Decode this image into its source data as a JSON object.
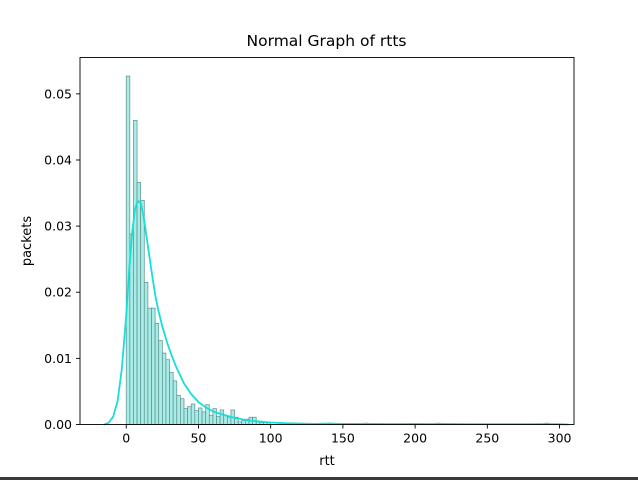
{
  "chart_data": {
    "type": "bar",
    "title": "Normal Graph of rtts",
    "xlabel": "rtt",
    "ylabel": "packets",
    "xlim": [
      -32,
      310
    ],
    "ylim": [
      0,
      0.0555
    ],
    "xticks": [
      0,
      50,
      100,
      150,
      200,
      250,
      300
    ],
    "yticks": [
      0.0,
      0.01,
      0.02,
      0.03,
      0.04,
      0.05
    ],
    "ytick_labels": [
      "0.00",
      "0.01",
      "0.02",
      "0.03",
      "0.04",
      "0.05"
    ],
    "bin_width": 2.5,
    "bar_color": "#a8ece7",
    "bar_edge": "#5f8f8c",
    "kde_color": "#14e0d9",
    "histogram": {
      "bin_start": [
        0,
        2.5,
        5,
        7.5,
        10,
        12.5,
        15,
        17.5,
        20,
        22.5,
        25,
        27.5,
        30,
        32.5,
        35,
        37.5,
        40,
        42.5,
        45,
        47.5,
        50,
        52.5,
        55,
        57.5,
        60,
        62.5,
        65,
        67.5,
        70,
        72.5,
        75,
        77.5,
        80,
        82.5,
        85,
        87.5,
        90,
        92.5,
        95,
        97.5,
        140,
        165,
        215,
        290
      ],
      "density": [
        0.0527,
        0.0288,
        0.046,
        0.0366,
        0.0339,
        0.0215,
        0.0176,
        0.0176,
        0.0153,
        0.0127,
        0.0108,
        0.0098,
        0.0079,
        0.0066,
        0.0044,
        0.0039,
        0.0024,
        0.0027,
        0.0031,
        0.0021,
        0.0025,
        0.0019,
        0.003,
        0.0014,
        0.0024,
        0.0012,
        0.0022,
        0.0014,
        0.0011,
        0.0022,
        0.0011,
        0.0004,
        0.0006,
        0.0008,
        0.0011,
        0.0011,
        0.0004,
        0.0003,
        0.0003,
        0.0003,
        0.0002,
        0.0002,
        0.0002,
        0.0002
      ]
    },
    "kde": {
      "x": [
        -15,
        -12,
        -9,
        -6,
        -3,
        0,
        2,
        4,
        6,
        8,
        10,
        12,
        14,
        16,
        18,
        20,
        22,
        25,
        28,
        31,
        35,
        40,
        45,
        50,
        55,
        60,
        65,
        70,
        75,
        80,
        85,
        90,
        95,
        100,
        110,
        120,
        130,
        140,
        150,
        160,
        170,
        180,
        190,
        200,
        210,
        220,
        230,
        240,
        250,
        260,
        270,
        280,
        290,
        300,
        306
      ],
      "y": [
        0.0,
        0.0003,
        0.0012,
        0.0035,
        0.0085,
        0.0165,
        0.0232,
        0.0288,
        0.0325,
        0.0338,
        0.0335,
        0.0315,
        0.0285,
        0.0255,
        0.0225,
        0.0197,
        0.0175,
        0.0148,
        0.0126,
        0.0107,
        0.0085,
        0.0062,
        0.0046,
        0.0034,
        0.0026,
        0.002,
        0.0016,
        0.0013,
        0.001,
        0.0008,
        0.0006,
        0.0005,
        0.0004,
        0.0003,
        0.0002,
        0.00015,
        0.0001,
        0.00015,
        0.0001,
        0.0001,
        0.0001,
        8e-05,
        8e-05,
        0.0001,
        8e-05,
        0.0001,
        8e-05,
        6e-05,
        6e-05,
        6e-05,
        6e-05,
        6e-05,
        8e-05,
        5e-05,
        0.0
      ]
    }
  }
}
